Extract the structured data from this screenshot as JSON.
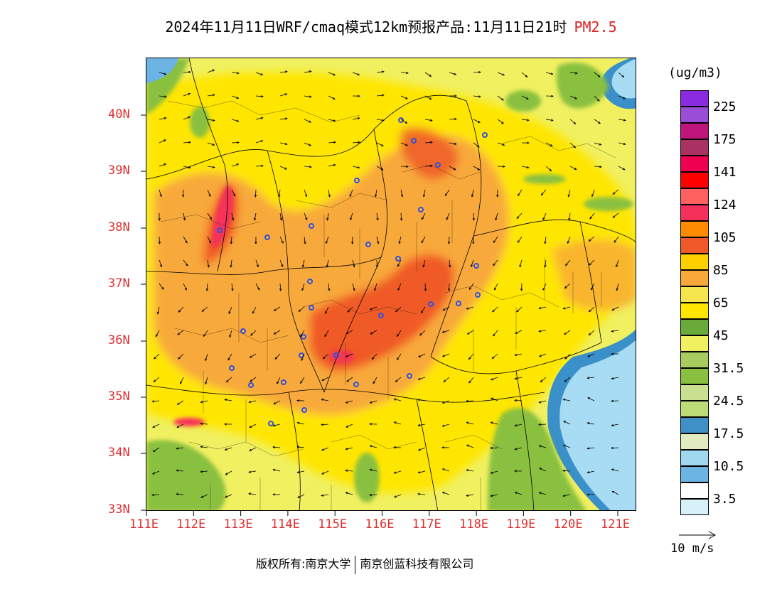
{
  "title": {
    "main": "2024年11月11日WRF/cmaq模式12km预报产品:11月11日21时",
    "species": "PM2.5"
  },
  "legend": {
    "unit": "(ug/m3)",
    "bins": [
      {
        "label": "225",
        "color": "#9a4ed8",
        "top_color": "#8a2be2"
      },
      {
        "label": "175",
        "color": "#a93262",
        "top_color": "#c0157a"
      },
      {
        "label": "141",
        "color": "#ff0000",
        "top_color": "#f00050"
      },
      {
        "label": "124",
        "color": "#f5305a",
        "top_color": "#ff6060"
      },
      {
        "label": "105",
        "color": "#f05a28",
        "top_color": "#ff8c00"
      },
      {
        "label": "85",
        "color": "#f8a93a",
        "top_color": "#ffd000"
      },
      {
        "label": "65",
        "color": "#ffe600",
        "top_color": "#f5e650"
      },
      {
        "label": "45",
        "color": "#f0f060",
        "top_color": "#6aaa3a"
      },
      {
        "label": "31.5",
        "color": "#8ac040",
        "top_color": "#a8cc60"
      },
      {
        "label": "24.5",
        "color": "#bcdc78",
        "top_color": "#c8e090"
      },
      {
        "label": "17.5",
        "color": "#e0ecc0",
        "top_color": "#4090c8"
      },
      {
        "label": "10.5",
        "color": "#6cb4e4",
        "top_color": "#a0d8f0"
      },
      {
        "label": "3.5",
        "color": "#d8f0fa",
        "top_color": "#ffffff"
      }
    ]
  },
  "axes": {
    "lat_labels": [
      "40N",
      "39N",
      "38N",
      "37N",
      "36N",
      "35N",
      "34N",
      "33N"
    ],
    "lon_labels": [
      "111E",
      "112E",
      "113E",
      "114E",
      "115E",
      "116E",
      "117E",
      "118E",
      "119E",
      "120E",
      "121E"
    ]
  },
  "wind_reference": {
    "label": "10 m/s"
  },
  "footer": {
    "copyright": "版权所有:南京大学",
    "company": "南京创蓝科技有限公司"
  },
  "colors": {
    "sea": "#a8dcf4",
    "sea_deep": "#3a90c8",
    "low": "#8ac040",
    "lowlight": "#c8e090",
    "base": "#f0f060",
    "mid": "#ffe600",
    "orange": "#f8a93a",
    "dark_orange": "#f05a28",
    "red": "#f5305a",
    "boundary": "#000000",
    "station": "#3050e0"
  }
}
